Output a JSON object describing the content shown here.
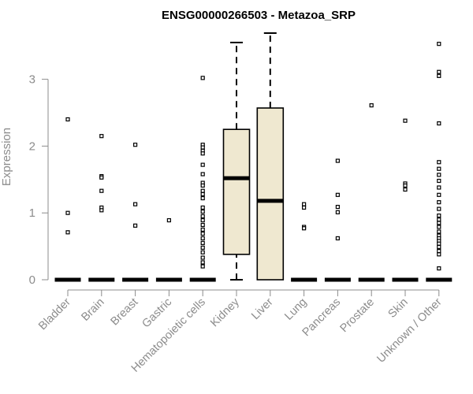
{
  "chart_data": {
    "type": "boxplot",
    "title": "ENSG00000266503 - Metazoa_SRP",
    "xlabel": "",
    "ylabel": "Expression",
    "ylim": [
      0,
      3.7
    ],
    "yticks": [
      0,
      1,
      2,
      3
    ],
    "grid": false,
    "legend": "none",
    "box_fill": "#efe8d0",
    "stroke_color": "#000000",
    "axis_color": "#8c8c8c",
    "categories": [
      "Bladder",
      "Brain",
      "Breast",
      "Gastric",
      "Hematopoietic cells",
      "Kidney",
      "Liver",
      "Lung",
      "Pancreas",
      "Prostate",
      "Skin",
      "Unknown / Other"
    ],
    "boxes": [
      {
        "q1": 0,
        "median": 0,
        "q3": 0,
        "whisker_low": 0,
        "whisker_high": 0,
        "outliers": [
          2.4,
          1.0,
          0.71
        ]
      },
      {
        "q1": 0,
        "median": 0,
        "q3": 0,
        "whisker_low": 0,
        "whisker_high": 0,
        "outliers": [
          2.15,
          1.55,
          1.53,
          1.33,
          1.08,
          1.04
        ]
      },
      {
        "q1": 0,
        "median": 0,
        "q3": 0,
        "whisker_low": 0,
        "whisker_high": 0,
        "outliers": [
          2.02,
          1.13,
          0.81
        ]
      },
      {
        "q1": 0,
        "median": 0,
        "q3": 0,
        "whisker_low": 0,
        "whisker_high": 0,
        "outliers": [
          0.89
        ]
      },
      {
        "q1": 0,
        "median": 0,
        "q3": 0,
        "whisker_low": 0,
        "whisker_high": 0,
        "outliers": [
          3.02,
          2.02,
          1.98,
          1.93,
          1.89,
          1.72,
          1.58,
          1.45,
          1.41,
          1.33,
          1.28,
          1.22,
          1.08,
          1.02,
          0.95,
          0.89,
          0.82,
          0.75,
          0.69,
          0.62,
          0.55,
          0.48,
          0.41,
          0.33,
          0.26,
          0.2
        ]
      },
      {
        "q1": 0.38,
        "median": 1.52,
        "q3": 2.25,
        "whisker_low": 0,
        "whisker_high": 3.55,
        "outliers": []
      },
      {
        "q1": 0,
        "median": 1.18,
        "q3": 2.57,
        "whisker_low": 0,
        "whisker_high": 3.7,
        "outliers": []
      },
      {
        "q1": 0,
        "median": 0,
        "q3": 0,
        "whisker_low": 0,
        "whisker_high": 0,
        "outliers": [
          1.13,
          1.08,
          0.79,
          0.77
        ]
      },
      {
        "q1": 0,
        "median": 0,
        "q3": 0,
        "whisker_low": 0,
        "whisker_high": 0,
        "outliers": [
          1.78,
          1.27,
          1.09,
          1.01,
          0.62
        ]
      },
      {
        "q1": 0,
        "median": 0,
        "q3": 0,
        "whisker_low": 0,
        "whisker_high": 0,
        "outliers": [
          2.61
        ]
      },
      {
        "q1": 0,
        "median": 0,
        "q3": 0,
        "whisker_low": 0,
        "whisker_high": 0,
        "outliers": [
          2.38,
          1.44,
          1.41,
          1.35
        ]
      },
      {
        "q1": 0,
        "median": 0,
        "q3": 0,
        "whisker_low": 0,
        "whisker_high": 0,
        "outliers": [
          3.53,
          3.11,
          3.05,
          2.34,
          1.76,
          1.66,
          1.57,
          1.48,
          1.38,
          1.27,
          1.16,
          1.06,
          0.96,
          0.9,
          0.85,
          0.79,
          0.72,
          0.66,
          0.62,
          0.58,
          0.54,
          0.49,
          0.43,
          0.38,
          0.17
        ]
      }
    ]
  }
}
